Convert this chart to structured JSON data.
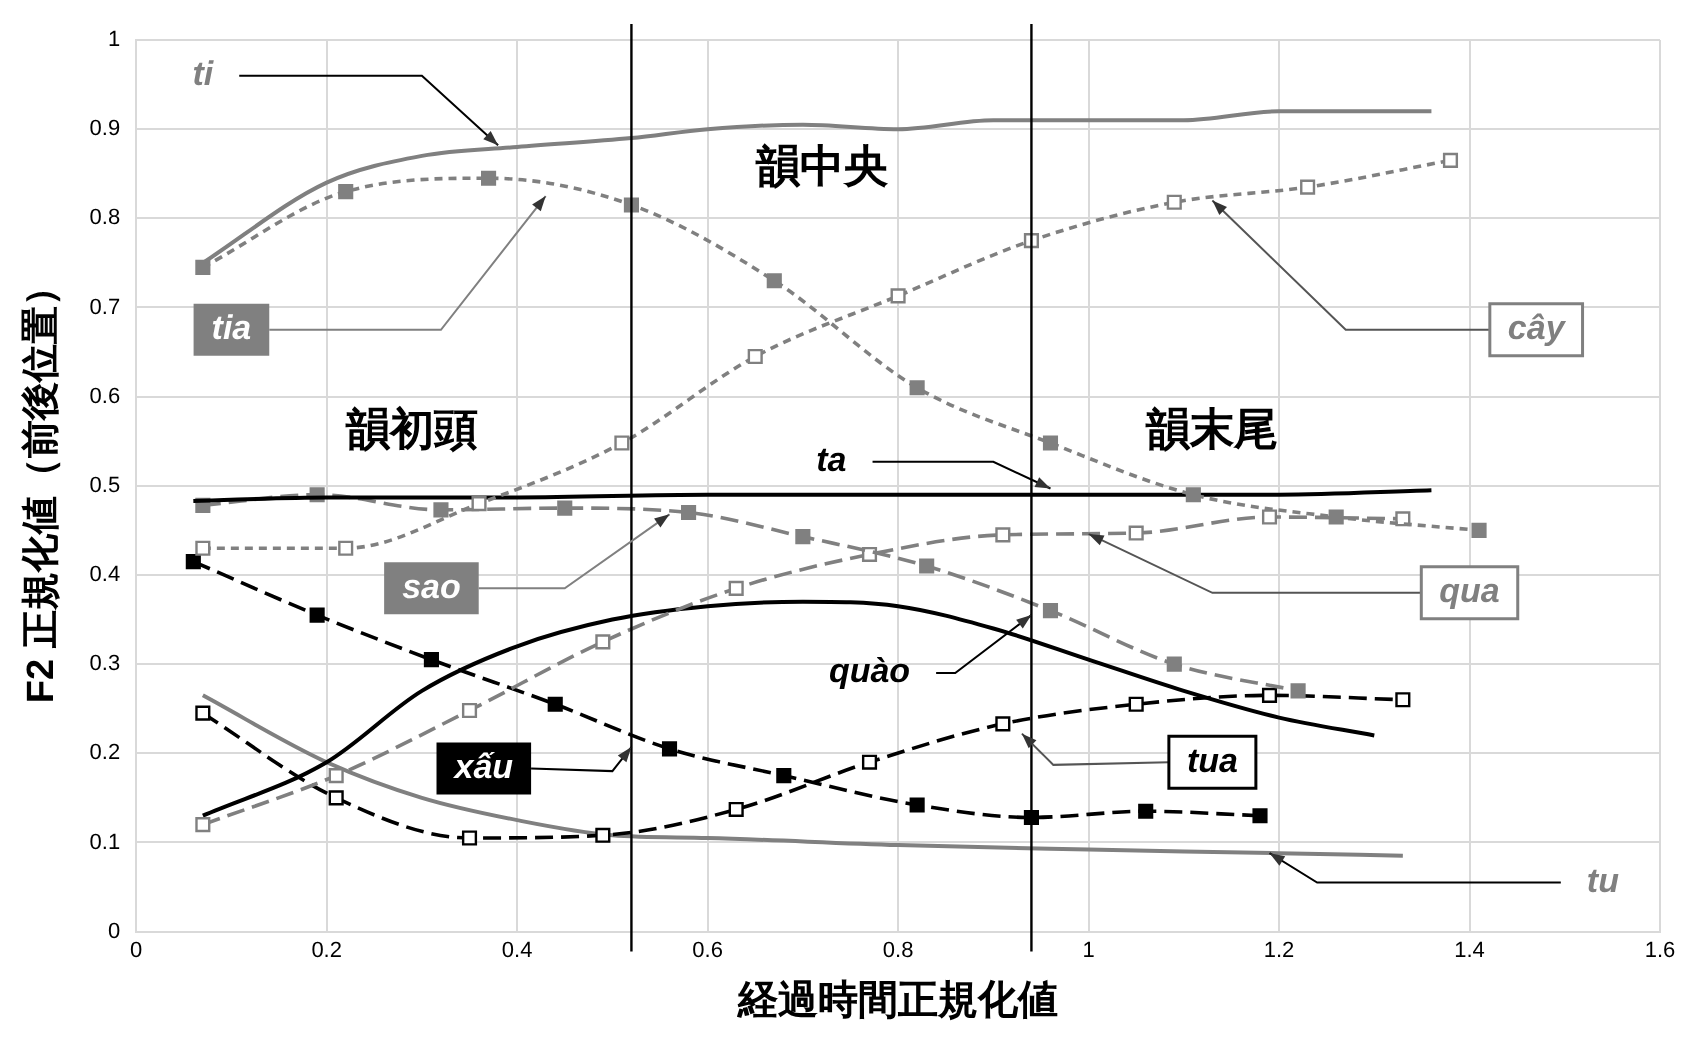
{
  "chart_data": {
    "type": "line",
    "xlabel": "経過時間正規化値",
    "ylabel": "F2 正規化値（前後位置）",
    "xlim": [
      0,
      1.6
    ],
    "xticks": [
      0,
      0.2,
      0.4,
      0.6,
      0.8,
      1,
      1.2,
      1.4,
      1.6
    ],
    "ylim": [
      0,
      1
    ],
    "yticks": [
      0,
      0.1,
      0.2,
      0.3,
      0.4,
      0.5,
      0.6,
      0.7,
      0.8,
      0.9,
      1
    ],
    "grid": true,
    "legend": false,
    "ref_lines": [
      {
        "axis": "x",
        "value": 0.52,
        "color": "#000000"
      },
      {
        "axis": "x",
        "value": 0.94,
        "color": "#000000"
      }
    ],
    "annotations": [
      "韻初頭",
      "韻中央",
      "韻末尾"
    ],
    "series": [
      {
        "name": "ti",
        "color": "#808080",
        "marker": "none",
        "line_style": "solid",
        "x": [
          0.07,
          0.2,
          0.3,
          0.4,
          0.52,
          0.6,
          0.7,
          0.8,
          0.9,
          1.0,
          1.1,
          1.2,
          1.36
        ],
        "values": [
          0.75,
          0.84,
          0.87,
          0.88,
          0.89,
          0.9,
          0.905,
          0.9,
          0.91,
          0.91,
          0.91,
          0.92,
          0.92
        ]
      },
      {
        "name": "tia",
        "color": "#808080",
        "marker": "square",
        "line_style": "dotted",
        "x": [
          0.07,
          0.22,
          0.37,
          0.52,
          0.67,
          0.82,
          0.96,
          1.11,
          1.26,
          1.41
        ],
        "values": [
          0.745,
          0.83,
          0.845,
          0.815,
          0.73,
          0.61,
          0.548,
          0.49,
          0.465,
          0.45
        ]
      },
      {
        "name": "cây",
        "color": "#808080",
        "marker": "square",
        "line_style": "dotted",
        "x": [
          0.07,
          0.22,
          0.36,
          0.51,
          0.65,
          0.8,
          0.94,
          1.09,
          1.23,
          1.38
        ],
        "values": [
          0.43,
          0.43,
          0.48,
          0.548,
          0.645,
          0.713,
          0.775,
          0.818,
          0.835,
          0.865
        ]
      },
      {
        "name": "ta",
        "color": "#000000",
        "marker": "none",
        "line_style": "solid",
        "x": [
          0.06,
          0.2,
          0.4,
          0.6,
          0.8,
          1.0,
          1.2,
          1.36
        ],
        "values": [
          0.483,
          0.487,
          0.487,
          0.49,
          0.49,
          0.49,
          0.49,
          0.495
        ]
      },
      {
        "name": "sao",
        "color": "#808080",
        "marker": "square",
        "line_style": "dashed",
        "x": [
          0.07,
          0.19,
          0.32,
          0.45,
          0.58,
          0.7,
          0.83,
          0.96,
          1.09,
          1.22
        ],
        "values": [
          0.478,
          0.49,
          0.473,
          0.475,
          0.47,
          0.443,
          0.41,
          0.36,
          0.3,
          0.27
        ]
      },
      {
        "name": "qua",
        "color": "#808080",
        "marker": "square",
        "line_style": "dashed",
        "x": [
          0.07,
          0.21,
          0.35,
          0.49,
          0.63,
          0.77,
          0.91,
          1.05,
          1.19,
          1.33
        ],
        "values": [
          0.12,
          0.175,
          0.248,
          0.325,
          0.385,
          0.423,
          0.445,
          0.447,
          0.465,
          0.463
        ]
      },
      {
        "name": "quào",
        "color": "#000000",
        "marker": "none",
        "line_style": "solid",
        "x": [
          0.07,
          0.2,
          0.3,
          0.4,
          0.5,
          0.6,
          0.7,
          0.8,
          0.9,
          1.0,
          1.1,
          1.2,
          1.3
        ],
        "values": [
          0.13,
          0.19,
          0.27,
          0.32,
          0.35,
          0.365,
          0.37,
          0.365,
          0.34,
          0.305,
          0.27,
          0.24,
          0.22
        ]
      },
      {
        "name": "xấu",
        "color": "#000000",
        "marker": "square",
        "line_style": "dashed",
        "x": [
          0.06,
          0.19,
          0.31,
          0.44,
          0.56,
          0.68,
          0.82,
          0.94,
          1.06,
          1.18
        ],
        "values": [
          0.415,
          0.355,
          0.305,
          0.255,
          0.205,
          0.175,
          0.142,
          0.128,
          0.135,
          0.13
        ]
      },
      {
        "name": "tua",
        "color": "#000000",
        "marker": "square",
        "line_style": "dashed",
        "x": [
          0.07,
          0.21,
          0.35,
          0.49,
          0.63,
          0.77,
          0.91,
          1.05,
          1.19,
          1.33
        ],
        "values": [
          0.245,
          0.15,
          0.105,
          0.108,
          0.137,
          0.19,
          0.233,
          0.255,
          0.265,
          0.26
        ]
      },
      {
        "name": "tu",
        "color": "#808080",
        "marker": "none",
        "line_style": "solid",
        "x": [
          0.07,
          0.2,
          0.3,
          0.4,
          0.5,
          0.6,
          0.8,
          1.0,
          1.2,
          1.33
        ],
        "values": [
          0.265,
          0.19,
          0.15,
          0.125,
          0.108,
          0.105,
          0.097,
          0.092,
          0.088,
          0.085
        ]
      }
    ]
  }
}
